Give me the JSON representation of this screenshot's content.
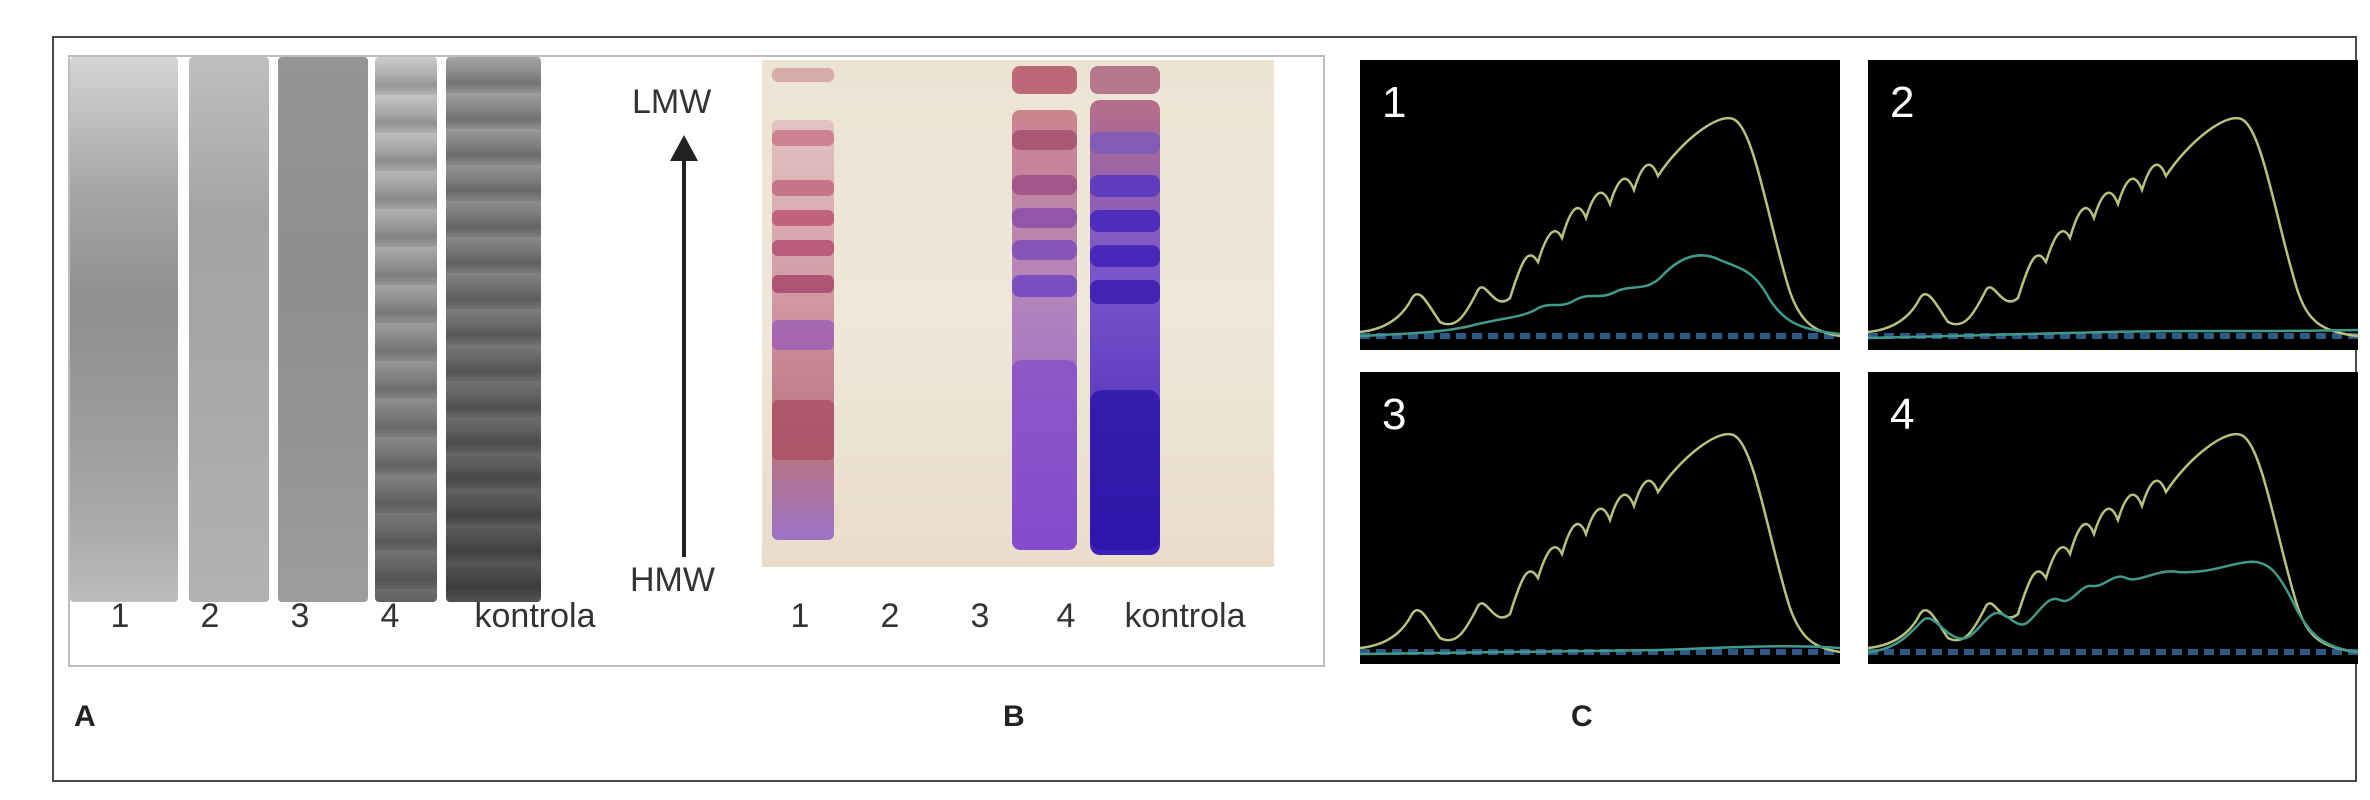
{
  "panel_letters": {
    "a": "A",
    "b": "B",
    "c": "C"
  },
  "gel_a": {
    "lane_labels": [
      "1",
      "2",
      "3",
      "4",
      "kontrola"
    ]
  },
  "gel_b": {
    "lane_labels": [
      "1",
      "2",
      "3",
      "4",
      "kontrola"
    ]
  },
  "arrow": {
    "top_label": "LMW",
    "bottom_label": "HMW"
  },
  "chromatograms": [
    {
      "label": "1"
    },
    {
      "label": "2"
    },
    {
      "label": "3"
    },
    {
      "label": "4"
    }
  ],
  "colors": {
    "trace_primary": "#b9c27a",
    "trace_secondary": "#3f9a8c",
    "baseline": "#2e5a8a",
    "stain_pink": "#c05a78",
    "stain_purple": "#5a36c0"
  }
}
